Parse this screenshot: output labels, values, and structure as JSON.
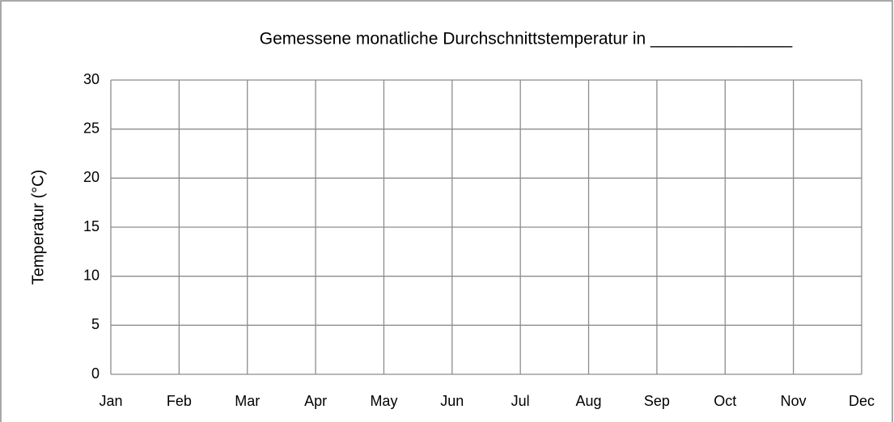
{
  "chart_data": {
    "type": "line",
    "title": "Gemessene monatliche Durchschnittstemperatur in _______________",
    "y_label": "Temperatur  (°C)",
    "categories": [
      "Jan",
      "Feb",
      "Mar",
      "Apr",
      "May",
      "Jun",
      "Jul",
      "Aug",
      "Sep",
      "Oct",
      "Nov",
      "Dec"
    ],
    "series": [],
    "ylim": [
      0,
      30
    ],
    "yticks": [
      0,
      5,
      10,
      15,
      20,
      25,
      30
    ],
    "grid": true
  }
}
